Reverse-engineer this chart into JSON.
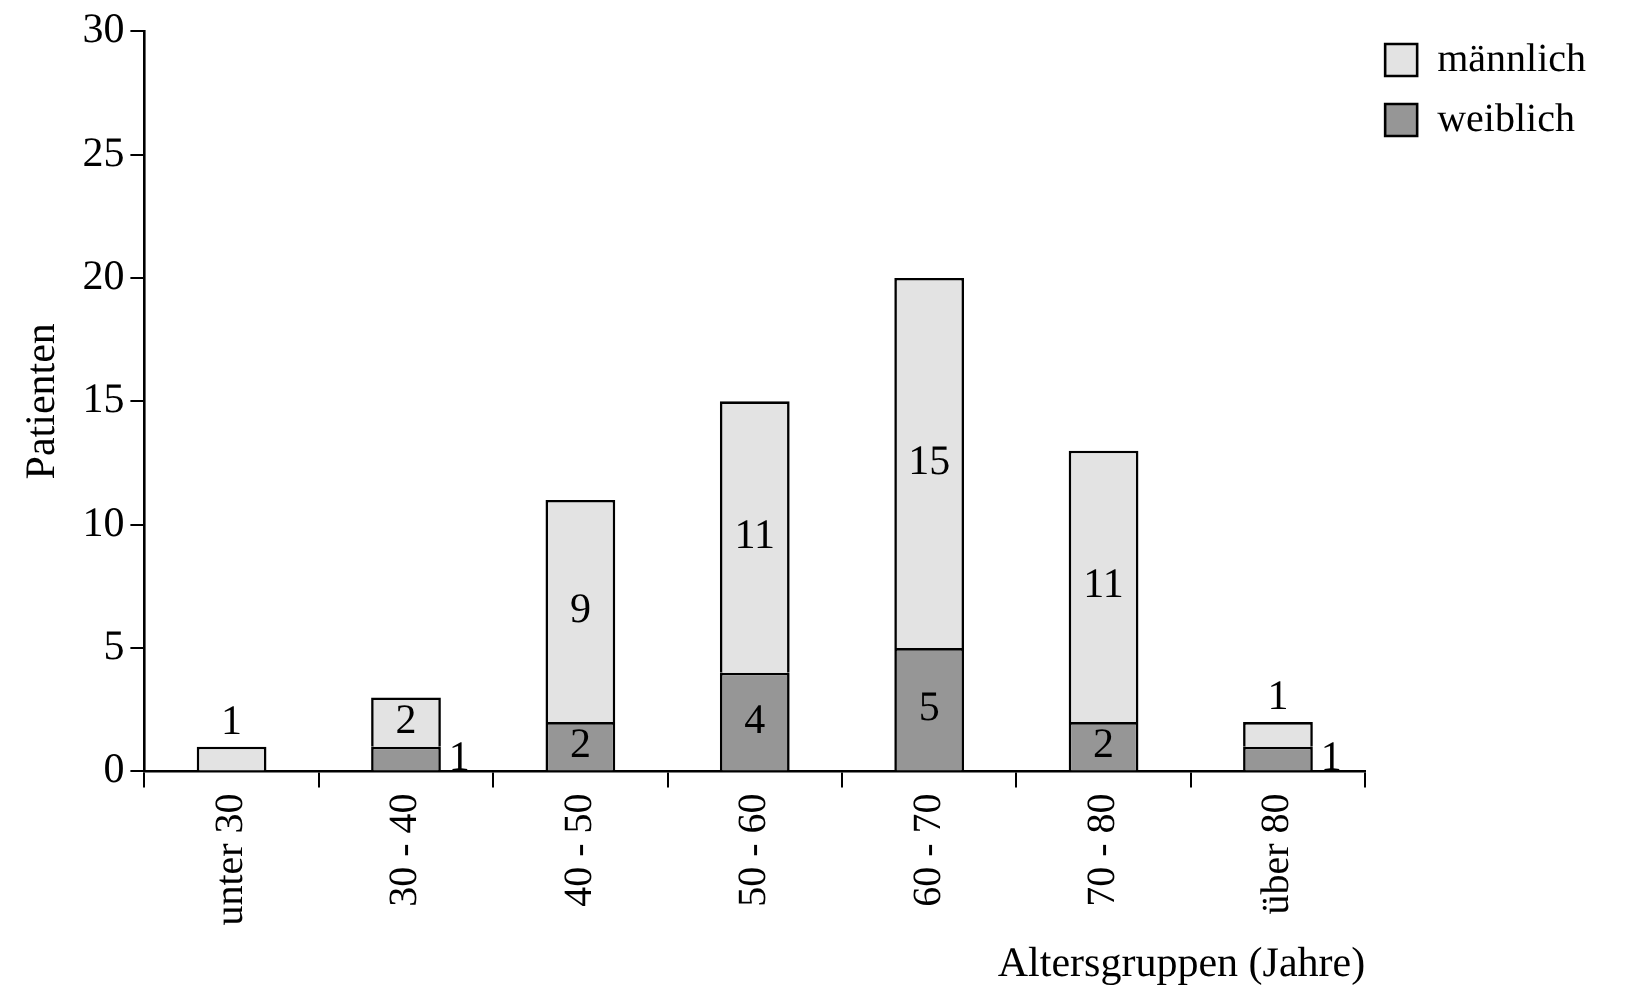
{
  "chart_data": {
    "type": "bar",
    "stacked": true,
    "xlabel": "Altersgruppen (Jahre)",
    "ylabel": "Patienten",
    "categories": [
      "unter 30",
      "30 - 40",
      "40 - 50",
      "50 - 60",
      "60 - 70",
      "70 - 80",
      "über 80"
    ],
    "series": [
      {
        "name": "weiblich",
        "color": "#969696",
        "values": [
          0,
          1,
          2,
          4,
          5,
          2,
          1
        ],
        "value_labels": [
          null,
          "1",
          "2",
          "4",
          "5",
          "2",
          "1"
        ]
      },
      {
        "name": "männlich",
        "color": "#e3e3e3",
        "values": [
          1,
          2,
          9,
          11,
          15,
          11,
          1
        ],
        "value_labels": [
          "1",
          "2",
          "9",
          "11",
          "15",
          "11",
          "1"
        ]
      }
    ],
    "ylim": [
      0,
      30
    ],
    "yticks": [
      0,
      5,
      10,
      15,
      20,
      25,
      30
    ],
    "grid": false,
    "legend": "top right"
  }
}
